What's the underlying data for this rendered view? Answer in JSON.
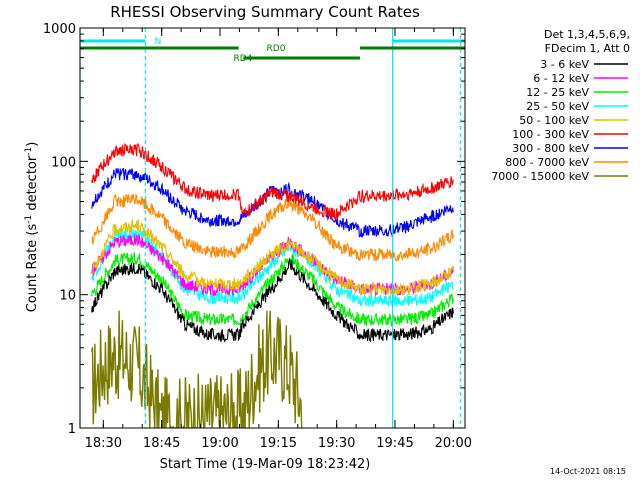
{
  "chart_data": {
    "type": "line",
    "title": "RHESSI Observing Summary Count Rates",
    "xlabel": "Start Time (19-Mar-09 18:23:42)",
    "ylabel_main": "Count Rate (s",
    "ylabel_exp1": "-1",
    "ylabel_mid": " detector",
    "ylabel_exp2": "-1",
    "ylabel_end": ")",
    "y_scale": "log",
    "ylim": [
      1,
      1000
    ],
    "xlim": [
      18.4,
      20.05
    ],
    "x_tick_labels": [
      "18:30",
      "18:45",
      "19:00",
      "19:15",
      "19:30",
      "19:45",
      "20:00"
    ],
    "x_tick_values": [
      18.5,
      18.75,
      19.0,
      19.25,
      19.5,
      19.75,
      20.0
    ],
    "y_tick_labels": [
      "1",
      "10",
      "100",
      "1000"
    ],
    "y_tick_values": [
      1,
      10,
      100,
      1000
    ],
    "legend_header": [
      "Det 1,3,4,5,6,9,",
      "FDecim 1, Att 0"
    ],
    "legend_placement": "right",
    "timestamp": "14-Oct-2021 08:15",
    "flags": [
      {
        "label": "N",
        "color": "#00e5ee",
        "segments": [
          [
            18.4,
            18.68
          ],
          [
            19.74,
            20.05
          ]
        ]
      },
      {
        "label": "RD0",
        "color": "#007a00",
        "segments": [
          [
            18.4,
            19.08
          ],
          [
            19.6,
            20.05
          ]
        ]
      },
      {
        "label": "RD4",
        "color": "#007a00",
        "segments": [
          [
            19.1,
            19.6
          ]
        ]
      }
    ],
    "vlines_solid": [
      18.4,
      19.74
    ],
    "vlines_dashed": [
      18.68,
      20.03
    ],
    "series": [
      {
        "name": "3 - 6 keV",
        "color": "#000000",
        "values_t": [
          18.45,
          18.55,
          18.65,
          18.75,
          18.85,
          18.95,
          19.08,
          19.1,
          19.22,
          19.3,
          19.4,
          19.5,
          19.6,
          19.7,
          19.8,
          19.9,
          20.0
        ],
        "values_y": [
          8,
          15,
          16,
          11,
          6,
          5,
          5,
          6,
          11,
          17,
          11,
          7,
          5,
          5,
          5,
          5.5,
          7.5
        ]
      },
      {
        "name": "6 - 12 keV",
        "color": "#ff00ff",
        "values_t": [
          18.45,
          18.55,
          18.65,
          18.75,
          18.85,
          18.95,
          19.08,
          19.1,
          19.22,
          19.3,
          19.4,
          19.5,
          19.6,
          19.7,
          19.8,
          19.9,
          20.0
        ],
        "values_y": [
          15,
          25,
          26,
          19,
          12,
          11,
          11,
          12,
          19,
          25,
          18,
          13,
          11,
          11,
          11,
          12,
          15
        ]
      },
      {
        "name": "12 - 25 keV",
        "color": "#00ee00",
        "values_t": [
          18.45,
          18.55,
          18.65,
          18.75,
          18.85,
          18.95,
          19.08,
          19.1,
          19.22,
          19.3,
          19.4,
          19.5,
          19.6,
          19.7,
          19.8,
          19.9,
          20.0
        ],
        "values_y": [
          10,
          18,
          19,
          13,
          7,
          6.5,
          6.5,
          7,
          13,
          19,
          13,
          8,
          6.5,
          6.5,
          6.5,
          7,
          9.5
        ]
      },
      {
        "name": "25 - 50 keV",
        "color": "#00ffff",
        "values_t": [
          18.45,
          18.55,
          18.65,
          18.75,
          18.85,
          18.95,
          19.08,
          19.1,
          19.22,
          19.3,
          19.4,
          19.5,
          19.6,
          19.7,
          19.8,
          19.9,
          20.0
        ],
        "values_y": [
          13,
          28,
          29,
          20,
          11,
          9.5,
          9.5,
          10,
          17,
          23,
          17,
          11,
          9,
          9,
          9,
          9.5,
          12
        ]
      },
      {
        "name": "50 - 100 keV",
        "color": "#e0c000",
        "values_t": [
          18.45,
          18.55,
          18.65,
          18.75,
          18.85,
          18.95,
          19.08,
          19.1,
          19.22,
          19.3,
          19.4,
          19.5,
          19.6,
          19.7,
          19.8,
          19.9,
          20.0
        ],
        "values_y": [
          15,
          31,
          33,
          23,
          14,
          12,
          12,
          13,
          20,
          24,
          18,
          13,
          11,
          11,
          11,
          12,
          15
        ]
      },
      {
        "name": "100 - 300 keV",
        "color": "#ff0000",
        "values_t": [
          18.45,
          18.55,
          18.65,
          18.75,
          18.85,
          18.95,
          19.08,
          19.1,
          19.22,
          19.3,
          19.4,
          19.5,
          19.6,
          19.7,
          19.8,
          19.9,
          20.0
        ],
        "values_y": [
          72,
          120,
          122,
          92,
          62,
          55,
          57,
          40,
          58,
          55,
          45,
          40,
          55,
          55,
          57,
          62,
          72
        ]
      },
      {
        "name": "300 - 800 keV",
        "color": "#0000ff",
        "values_t": [
          18.45,
          18.55,
          18.65,
          18.75,
          18.85,
          18.95,
          19.08,
          19.1,
          19.22,
          19.3,
          19.4,
          19.5,
          19.6,
          19.7,
          19.8,
          19.9,
          20.0
        ],
        "values_y": [
          48,
          80,
          80,
          62,
          42,
          36,
          36,
          38,
          60,
          62,
          50,
          36,
          30,
          30,
          32,
          38,
          46
        ]
      },
      {
        "name": "800 - 7000 keV",
        "color": "#ff8800",
        "values_t": [
          18.45,
          18.55,
          18.65,
          18.75,
          18.85,
          18.95,
          19.08,
          19.1,
          19.22,
          19.3,
          19.4,
          19.5,
          19.6,
          19.7,
          19.8,
          19.9,
          20.0
        ],
        "values_y": [
          25,
          50,
          52,
          38,
          24,
          21,
          21,
          23,
          40,
          49,
          36,
          23,
          20,
          20,
          20,
          22,
          28
        ]
      },
      {
        "name": "7000 - 15000 keV",
        "color": "#7a7a00",
        "values_t": [
          18.45,
          18.5,
          18.55,
          18.6,
          18.65,
          18.7,
          18.75,
          19.1,
          19.15,
          19.2,
          19.25,
          19.3,
          19.35
        ],
        "values_y": [
          2,
          3,
          3.5,
          3.3,
          2.8,
          1.8,
          1.1,
          1.3,
          2.5,
          3.5,
          3.6,
          2.8,
          1.5
        ]
      }
    ]
  }
}
